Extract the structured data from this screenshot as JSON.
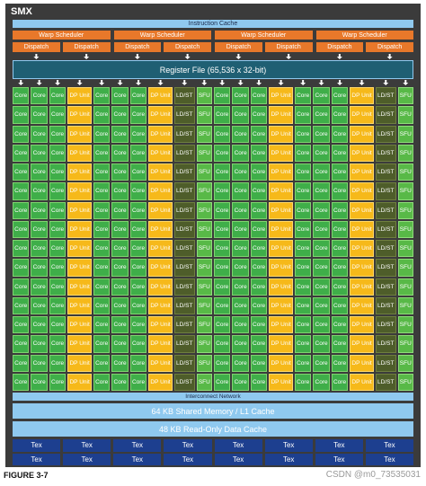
{
  "title": "SMX",
  "instruction_cache": "Instruction Cache",
  "warp_schedulers": [
    {
      "label": "Warp Scheduler",
      "dispatch": [
        "Dispatch",
        "Dispatch"
      ]
    },
    {
      "label": "Warp Scheduler",
      "dispatch": [
        "Dispatch",
        "Dispatch"
      ]
    },
    {
      "label": "Warp Scheduler",
      "dispatch": [
        "Dispatch",
        "Dispatch"
      ]
    },
    {
      "label": "Warp Scheduler",
      "dispatch": [
        "Dispatch",
        "Dispatch"
      ]
    }
  ],
  "register_file": "Register File (65,536 x 32-bit)",
  "units": {
    "rows": [
      [
        "Core",
        "Core",
        "Core",
        "DP Unit",
        "Core",
        "Core",
        "Core",
        "DP Unit",
        "LD/ST",
        "SFU",
        "Core",
        "Core",
        "Core",
        "DP Unit",
        "Core",
        "Core",
        "Core",
        "DP Unit",
        "LD/ST",
        "SFU"
      ],
      [
        "Core",
        "Core",
        "Core",
        "DP Unit",
        "Core",
        "Core",
        "Core",
        "DP Unit",
        "LD/ST",
        "SFU",
        "Core",
        "Core",
        "Core",
        "DP Unit",
        "Core",
        "Core",
        "Core",
        "DP Unit",
        "LD/ST",
        "SFU"
      ],
      [
        "Core",
        "Core",
        "Core",
        "DP Unit",
        "Core",
        "Core",
        "Core",
        "DP Unit",
        "LD/ST",
        "SFU",
        "Core",
        "Core",
        "Core",
        "DP Unit",
        "Core",
        "Core",
        "Core",
        "DP Unit",
        "LD/ST",
        "SFU"
      ],
      [
        "Core",
        "Core",
        "Core",
        "DP Unit",
        "Core",
        "Core",
        "Core",
        "DP Unit",
        "LD/ST",
        "SFU",
        "Core",
        "Core",
        "Core",
        "DP Unit",
        "Core",
        "Core",
        "Core",
        "DP Unit",
        "LD/ST",
        "SFU"
      ],
      [
        "Core",
        "Core",
        "Core",
        "DP Unit",
        "Core",
        "Core",
        "Core",
        "DP Unit",
        "LD/ST",
        "SFU",
        "Core",
        "Core",
        "Core",
        "DP Unit",
        "Core",
        "Core",
        "Core",
        "DP Unit",
        "LD/ST",
        "SFU"
      ],
      [
        "Core",
        "Core",
        "Core",
        "DP Unit",
        "Core",
        "Core",
        "Core",
        "DP Unit",
        "LD/ST",
        "SFU",
        "Core",
        "Core",
        "Core",
        "DP Unit",
        "Core",
        "Core",
        "Core",
        "DP Unit",
        "LD/ST",
        "SFU"
      ],
      [
        "Core",
        "Core",
        "Core",
        "DP Unit",
        "Core",
        "Core",
        "Core",
        "DP Unit",
        "LD/ST",
        "SFU",
        "Core",
        "Core",
        "Core",
        "DP Unit",
        "Core",
        "Core",
        "Core",
        "DP Unit",
        "LD/ST",
        "SFU"
      ],
      [
        "Core",
        "Core",
        "Core",
        "DP Unit",
        "Core",
        "Core",
        "Core",
        "DP Unit",
        "LD/ST",
        "SFU",
        "Core",
        "Core",
        "Core",
        "DP Unit",
        "Core",
        "Core",
        "Core",
        "DP Unit",
        "LD/ST",
        "SFU"
      ],
      [
        "Core",
        "Core",
        "Core",
        "DP Unit",
        "Core",
        "Core",
        "Core",
        "DP Unit",
        "LD/ST",
        "SFU",
        "Core",
        "Core",
        "Core",
        "DP Unit",
        "Core",
        "Core",
        "Core",
        "DP Unit",
        "LD/ST",
        "SFU"
      ],
      [
        "Core",
        "Core",
        "Core",
        "DP Unit",
        "Core",
        "Core",
        "Core",
        "DP Unit",
        "LD/ST",
        "SFU",
        "Core",
        "Core",
        "Core",
        "DP Unit",
        "Core",
        "Core",
        "Core",
        "DP Unit",
        "LD/ST",
        "SFU"
      ],
      [
        "Core",
        "Core",
        "Core",
        "DP Unit",
        "Core",
        "Core",
        "Core",
        "DP Unit",
        "LD/ST",
        "SFU",
        "Core",
        "Core",
        "Core",
        "DP Unit",
        "Core",
        "Core",
        "Core",
        "DP Unit",
        "LD/ST",
        "SFU"
      ],
      [
        "Core",
        "Core",
        "Core",
        "DP Unit",
        "Core",
        "Core",
        "Core",
        "DP Unit",
        "LD/ST",
        "SFU",
        "Core",
        "Core",
        "Core",
        "DP Unit",
        "Core",
        "Core",
        "Core",
        "DP Unit",
        "LD/ST",
        "SFU"
      ],
      [
        "Core",
        "Core",
        "Core",
        "DP Unit",
        "Core",
        "Core",
        "Core",
        "DP Unit",
        "LD/ST",
        "SFU",
        "Core",
        "Core",
        "Core",
        "DP Unit",
        "Core",
        "Core",
        "Core",
        "DP Unit",
        "LD/ST",
        "SFU"
      ],
      [
        "Core",
        "Core",
        "Core",
        "DP Unit",
        "Core",
        "Core",
        "Core",
        "DP Unit",
        "LD/ST",
        "SFU",
        "Core",
        "Core",
        "Core",
        "DP Unit",
        "Core",
        "Core",
        "Core",
        "DP Unit",
        "LD/ST",
        "SFU"
      ],
      [
        "Core",
        "Core",
        "Core",
        "DP Unit",
        "Core",
        "Core",
        "Core",
        "DP Unit",
        "LD/ST",
        "SFU",
        "Core",
        "Core",
        "Core",
        "DP Unit",
        "Core",
        "Core",
        "Core",
        "DP Unit",
        "LD/ST",
        "SFU"
      ],
      [
        "Core",
        "Core",
        "Core",
        "DP Unit",
        "Core",
        "Core",
        "Core",
        "DP Unit",
        "LD/ST",
        "SFU",
        "Core",
        "Core",
        "Core",
        "DP Unit",
        "Core",
        "Core",
        "Core",
        "DP Unit",
        "LD/ST",
        "SFU"
      ]
    ]
  },
  "interconnect": "Interconnect Network",
  "shared_memory": "64 KB Shared Memory / L1 Cache",
  "read_only_cache": "48 KB Read-Only Data Cache",
  "tex": {
    "rows": [
      [
        "Tex",
        "Tex",
        "Tex",
        "Tex",
        "Tex",
        "Tex",
        "Tex",
        "Tex"
      ],
      [
        "Tex",
        "Tex",
        "Tex",
        "Tex",
        "Tex",
        "Tex",
        "Tex",
        "Tex"
      ]
    ]
  },
  "caption": "FIGURE 3-7",
  "watermark": "CSDN @m0_73535031"
}
